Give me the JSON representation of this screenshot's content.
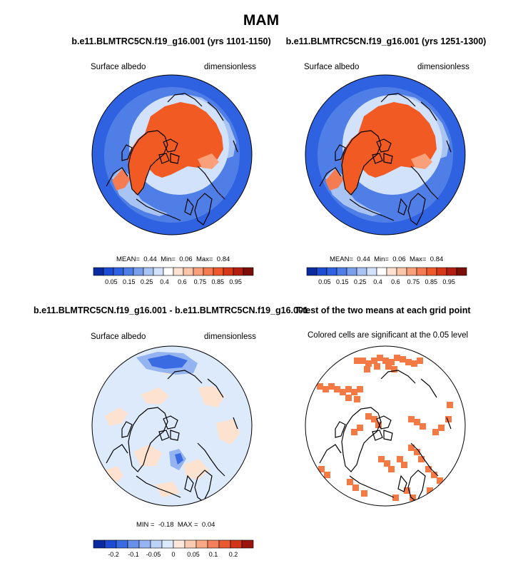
{
  "main_title": "MAM",
  "colors": {
    "albedo_scale": [
      "#0a2a9f",
      "#1c4bd4",
      "#2e62e0",
      "#4f7fe6",
      "#7aa0ec",
      "#a9c3f3",
      "#d2e2fa",
      "#ffffff",
      "#fde2d2",
      "#fcc6a9",
      "#f9a07a",
      "#f57c52",
      "#ee5a2c",
      "#d8381a",
      "#b11f12",
      "#7c0e0a"
    ],
    "diff_scale": [
      "#0a2a9f",
      "#1c4bd4",
      "#3a6be3",
      "#6690ea",
      "#93b3f1",
      "#bcd2f7",
      "#dde9fc",
      "#fde7da",
      "#fbcbb1",
      "#f8a882",
      "#f3805a",
      "#e95a33",
      "#d1351a",
      "#9a140d"
    ],
    "land_orange": "#f25a24",
    "ocean_blue": "#3a6be0",
    "pale_blue": "#dceafc",
    "pale_peach": "#fde2d0",
    "signif_orange": "#f47a45"
  },
  "chart_data": [
    {
      "type": "heatmap",
      "title": "b.e11.BLMTRC5CN.f19_g16.001 (yrs 1101-1150)",
      "left_label": "Surface albedo",
      "right_label": "dimensionless",
      "projection": "north-polar-stereographic",
      "stats": {
        "mean_label": "MEAN=",
        "mean": "0.44",
        "min_label": "Min=",
        "min": "0.06",
        "max_label": "Max=",
        "max": "0.84"
      },
      "colorbar_ticks": [
        "0.05",
        "0.15",
        "0.25",
        "0.4",
        "0.6",
        "0.75",
        "0.85",
        "0.95"
      ]
    },
    {
      "type": "heatmap",
      "title": "b.e11.BLMTRC5CN.f19_g16.001 (yrs 1251-1300)",
      "left_label": "Surface albedo",
      "right_label": "dimensionless",
      "projection": "north-polar-stereographic",
      "stats": {
        "mean_label": "MEAN=",
        "mean": "0.44",
        "min_label": "Min=",
        "min": "0.06",
        "max_label": "Max=",
        "max": "0.84"
      },
      "colorbar_ticks": [
        "0.05",
        "0.15",
        "0.25",
        "0.4",
        "0.6",
        "0.75",
        "0.85",
        "0.95"
      ]
    },
    {
      "type": "heatmap",
      "title": "b.e11.BLMTRC5CN.f19_g16.001 - b.e11.BLMTRC5CN.f19_g16.001",
      "left_label": "Surface albedo",
      "right_label": "dimensionless",
      "projection": "north-polar-stereographic",
      "stats": {
        "min_label": "MIN =",
        "min": "-0.18",
        "max_label": "MAX =",
        "max": "0.04"
      },
      "colorbar_ticks": [
        "-0.2",
        "-0.1",
        "-0.05",
        "0",
        "0.05",
        "0.1",
        "0.2"
      ]
    },
    {
      "type": "heatmap",
      "title": "T-test of the two means at each grid point",
      "subtitle": "Colored cells are significant at the 0.05 level",
      "projection": "north-polar-stereographic"
    }
  ]
}
